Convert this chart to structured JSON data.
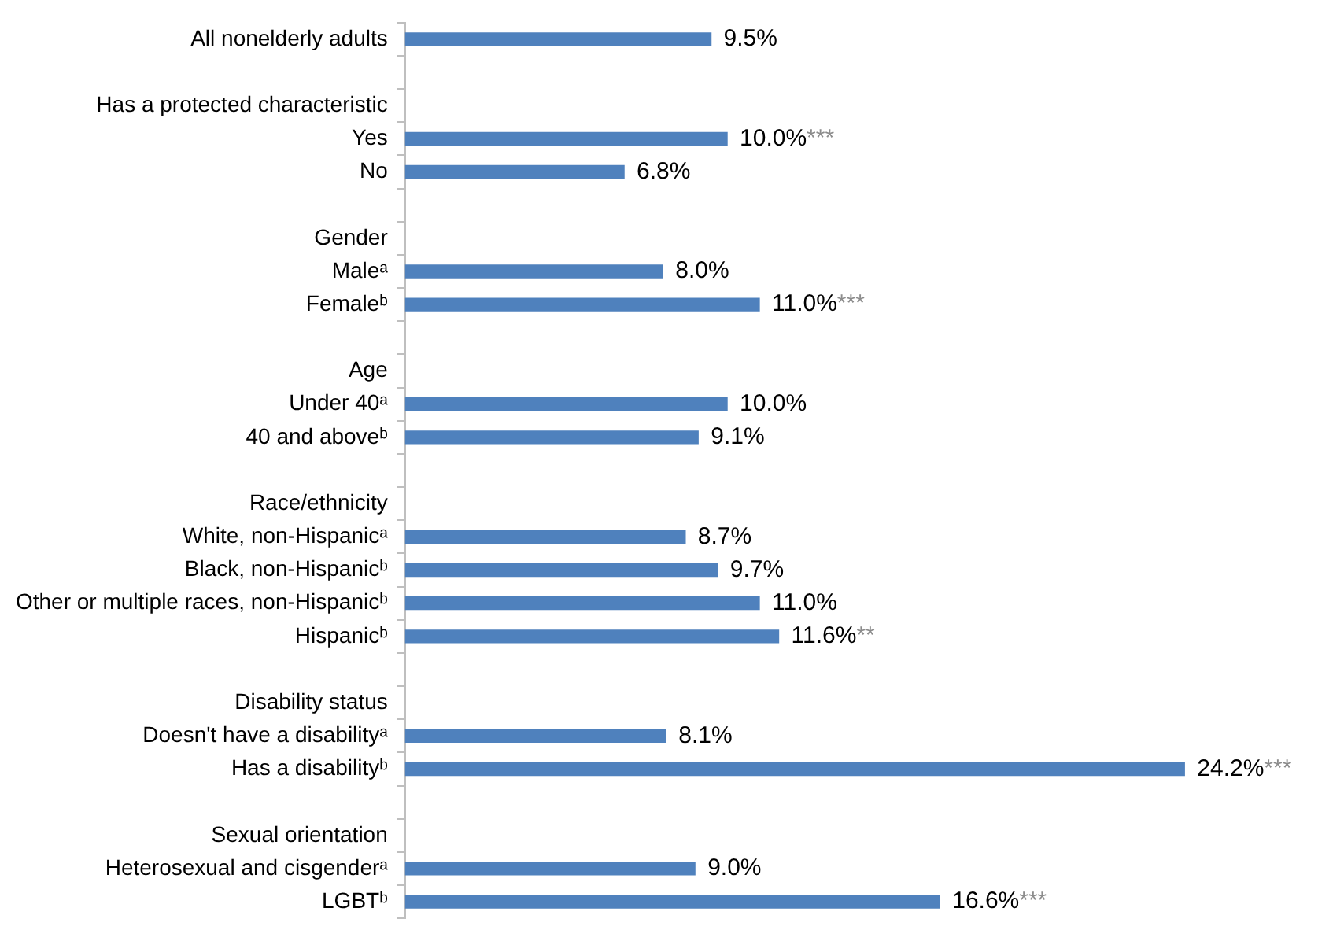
{
  "chart_data": {
    "type": "bar",
    "orientation": "horizontal",
    "categories": [
      "All nonelderly adults",
      null,
      "Has a protected characteristic",
      "Yes",
      "No",
      null,
      "Gender",
      "Maleᵃ",
      "Femaleᵇ",
      null,
      "Age",
      "Under 40ᵃ",
      "40 and aboveᵇ",
      null,
      "Race/ethnicity",
      "White, non-Hispanicᵃ",
      "Black, non-Hispanicᵇ",
      "Other or multiple races, non-Hispanicᵇ",
      "Hispanicᵇ",
      null,
      "Disability status",
      "Doesn't have a disabilityᵃ",
      "Has a disabilityᵇ",
      null,
      "Sexual orientation",
      "Heterosexual and cisgenderᵃ",
      "LGBTᵇ"
    ],
    "values": [
      9.5,
      null,
      null,
      10.0,
      6.8,
      null,
      null,
      8.0,
      11.0,
      null,
      null,
      10.0,
      9.1,
      null,
      null,
      8.7,
      9.7,
      11.0,
      11.6,
      null,
      null,
      8.1,
      24.2,
      null,
      null,
      9.0,
      16.6
    ],
    "value_labels": [
      "9.5%",
      null,
      null,
      "10.0%***",
      "6.8%",
      null,
      null,
      "8.0%",
      "11.0%***",
      null,
      null,
      "10.0%",
      "9.1%",
      null,
      null,
      "8.7%",
      "9.7%",
      "11.0%",
      "11.6%**",
      null,
      null,
      "8.1%",
      "24.2%***",
      null,
      null,
      "9.0%",
      "16.6%***"
    ],
    "color": "#4f81bd",
    "legend": false
  }
}
